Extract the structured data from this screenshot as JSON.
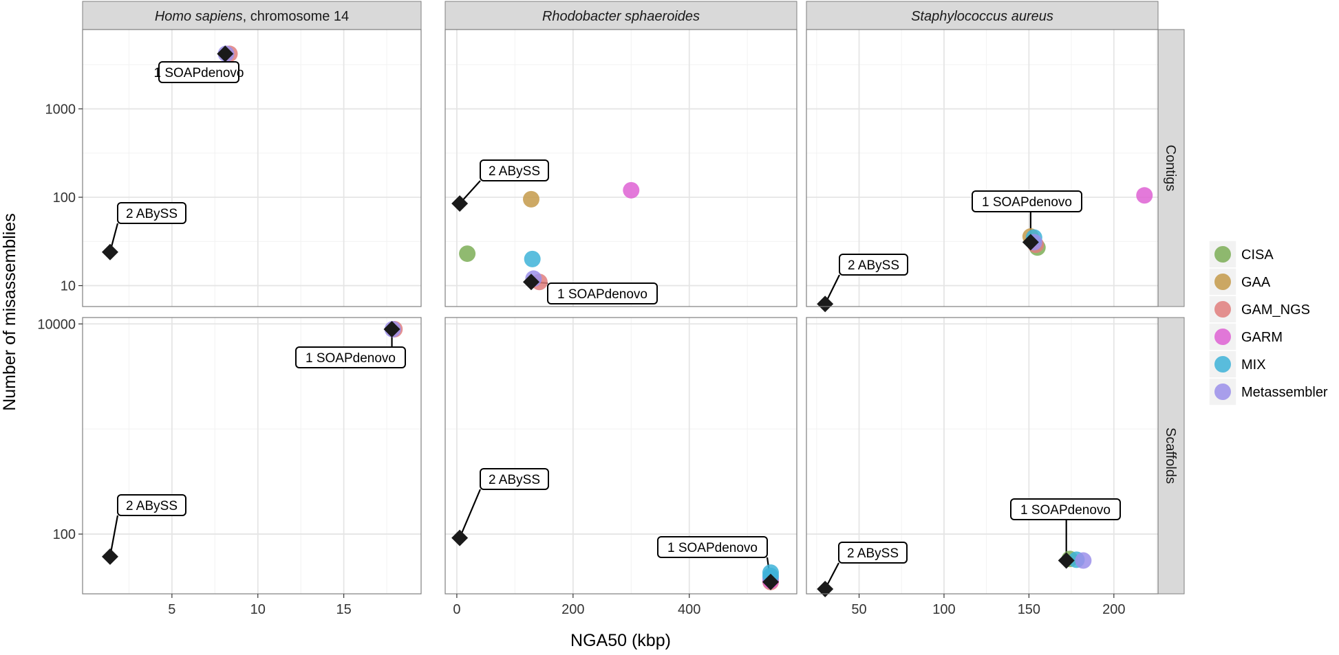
{
  "chart_data": {
    "type": "scatter",
    "xlabel": "NGA50 (kbp)",
    "ylabel": "Number of misassemblies",
    "y_scale": "log",
    "grid": true,
    "legend": {
      "placement": "right",
      "entries": [
        {
          "name": "CISA",
          "color": "#7CAE57"
        },
        {
          "name": "GAA",
          "color": "#C49A4A"
        },
        {
          "name": "GAM_NGS",
          "color": "#E07E7C"
        },
        {
          "name": "GARM",
          "color": "#DE62D4"
        },
        {
          "name": "MIX",
          "color": "#3EB3D8"
        },
        {
          "name": "Metassembler",
          "color": "#9B8FEA"
        }
      ]
    },
    "columns": [
      {
        "title_italic": "Homo sapiens",
        "title_rest": ", chromosome 14",
        "xlim": [
          -0.2,
          19.5
        ],
        "x_ticks": [
          5,
          10,
          15
        ],
        "x_tick_labels": [
          "5",
          "10",
          "15"
        ]
      },
      {
        "title_italic": "Rhodobacter sphaeroides",
        "title_rest": "",
        "xlim": [
          -20,
          585
        ],
        "x_ticks": [
          0,
          200,
          400
        ],
        "x_tick_labels": [
          "0",
          "200",
          "400"
        ]
      },
      {
        "title_italic": "Staphylococcus aureus",
        "title_rest": "",
        "xlim": [
          19,
          226
        ],
        "x_ticks": [
          50,
          100,
          150,
          200
        ],
        "x_tick_labels": [
          "50",
          "100",
          "150",
          "200"
        ]
      }
    ],
    "rows": [
      {
        "label": "Contigs",
        "ylim": [
          5.8,
          7900
        ],
        "y_ticks": [
          10,
          100,
          1000
        ],
        "y_tick_labels": [
          "10",
          "100",
          "1000"
        ]
      },
      {
        "label": "Scaffolds",
        "ylim": [
          27,
          11500
        ],
        "y_ticks": [
          100,
          10000
        ],
        "y_tick_labels": [
          "100",
          "10000"
        ]
      }
    ],
    "panels": [
      {
        "row": 0,
        "col": 0,
        "base_points": [
          {
            "label": "2 ABySS",
            "x": 1.4,
            "y": 24
          },
          {
            "label": "1 SOAPdenovo",
            "x": 8.1,
            "y": 4200
          }
        ],
        "points": [
          {
            "series": "GAM_NGS",
            "x": 8.35,
            "y": 4200
          },
          {
            "series": "Metassembler",
            "x": 8.15,
            "y": 4200
          }
        ]
      },
      {
        "row": 0,
        "col": 1,
        "base_points": [
          {
            "label": "2 ABySS",
            "x": 5,
            "y": 85
          },
          {
            "label": "1 SOAPdenovo",
            "x": 128,
            "y": 11
          }
        ],
        "points": [
          {
            "series": "CISA",
            "x": 18,
            "y": 23
          },
          {
            "series": "GAA",
            "x": 128,
            "y": 95
          },
          {
            "series": "GARM",
            "x": 300,
            "y": 120
          },
          {
            "series": "MIX",
            "x": 130,
            "y": 20
          },
          {
            "series": "GAM_NGS",
            "x": 142,
            "y": 11
          },
          {
            "series": "Metassembler",
            "x": 132,
            "y": 12
          }
        ]
      },
      {
        "row": 0,
        "col": 2,
        "base_points": [
          {
            "label": "2 ABySS",
            "x": 30,
            "y": 6.2
          },
          {
            "label": "1 SOAPdenovo",
            "x": 151,
            "y": 31
          }
        ],
        "points": [
          {
            "series": "GAA",
            "x": 151,
            "y": 36
          },
          {
            "series": "CISA",
            "x": 155,
            "y": 27
          },
          {
            "series": "GAM_NGS",
            "x": 154,
            "y": 29
          },
          {
            "series": "MIX",
            "x": 153,
            "y": 35
          },
          {
            "series": "Metassembler",
            "x": 153,
            "y": 31
          },
          {
            "series": "GARM",
            "x": 218,
            "y": 105
          }
        ]
      },
      {
        "row": 1,
        "col": 0,
        "base_points": [
          {
            "label": "2 ABySS",
            "x": 1.4,
            "y": 61
          },
          {
            "label": "1 SOAPdenovo",
            "x": 17.8,
            "y": 8900
          }
        ],
        "points": [
          {
            "series": "GAM_NGS",
            "x": 17.95,
            "y": 8900
          },
          {
            "series": "Metassembler",
            "x": 17.85,
            "y": 8900
          }
        ]
      },
      {
        "row": 1,
        "col": 1,
        "base_points": [
          {
            "label": "2 ABySS",
            "x": 5,
            "y": 92
          },
          {
            "label": "1 SOAPdenovo",
            "x": 540,
            "y": 35
          }
        ],
        "points": [
          {
            "series": "GAM_NGS",
            "x": 540,
            "y": 35
          },
          {
            "series": "GARM",
            "x": 540,
            "y": 36
          },
          {
            "series": "Metassembler",
            "x": 540,
            "y": 38
          },
          {
            "series": "MIX",
            "x": 540,
            "y": 40
          },
          {
            "series": "MIX",
            "x": 540,
            "y": 43
          }
        ]
      },
      {
        "row": 1,
        "col": 2,
        "base_points": [
          {
            "label": "2 ABySS",
            "x": 30,
            "y": 30
          },
          {
            "label": "1 SOAPdenovo",
            "x": 172,
            "y": 56
          }
        ],
        "points": [
          {
            "series": "CISA",
            "x": 174,
            "y": 58
          },
          {
            "series": "MIX",
            "x": 178,
            "y": 57
          },
          {
            "series": "Metassembler",
            "x": 182,
            "y": 56
          }
        ]
      }
    ],
    "callouts": [
      {
        "row": 0,
        "col": 0,
        "text": "1 SOAPdenovo"
      },
      {
        "row": 0,
        "col": 0,
        "text": "2 ABySS"
      },
      {
        "row": 0,
        "col": 1,
        "text": "2 ABySS"
      },
      {
        "row": 0,
        "col": 1,
        "text": "1 SOAPdenovo"
      },
      {
        "row": 0,
        "col": 2,
        "text": "1 SOAPdenovo"
      },
      {
        "row": 0,
        "col": 2,
        "text": "2 ABySS"
      },
      {
        "row": 1,
        "col": 0,
        "text": "1 SOAPdenovo"
      },
      {
        "row": 1,
        "col": 0,
        "text": "2 ABySS"
      },
      {
        "row": 1,
        "col": 1,
        "text": "2 ABySS"
      },
      {
        "row": 1,
        "col": 1,
        "text": "1 SOAPdenovo"
      },
      {
        "row": 1,
        "col": 2,
        "text": "1 SOAPdenovo"
      },
      {
        "row": 1,
        "col": 2,
        "text": "2 ABySS"
      }
    ]
  }
}
